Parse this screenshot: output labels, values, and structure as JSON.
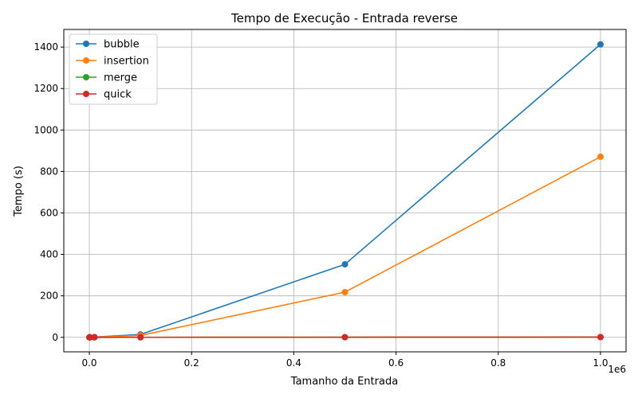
{
  "chart_data": {
    "type": "line",
    "title": "Tempo de Execução - Entrada reverse",
    "xlabel": "Tamanho da Entrada",
    "ylabel": "Tempo (s)",
    "x_offset_label": "1e6",
    "x": [
      100,
      1000,
      10000,
      100000,
      500000,
      1000000
    ],
    "xlim": [
      -50000,
      1050000
    ],
    "ylim": [
      -70,
      1485
    ],
    "xticks": [
      0,
      200000,
      400000,
      600000,
      800000,
      1000000
    ],
    "xtick_labels": [
      "0.0",
      "0.2",
      "0.4",
      "0.6",
      "0.8",
      "1.0"
    ],
    "yticks": [
      0,
      200,
      400,
      600,
      800,
      1000,
      1200,
      1400
    ],
    "ytick_labels": [
      "0",
      "200",
      "400",
      "600",
      "800",
      "1000",
      "1200",
      "1400"
    ],
    "grid": true,
    "legend_position": "top-left",
    "series": [
      {
        "name": "bubble",
        "color": "#1f77b4",
        "values": [
          0.001,
          0.1,
          1.4,
          14,
          352,
          1413
        ]
      },
      {
        "name": "insertion",
        "color": "#ff7f0e",
        "values": [
          0.0005,
          0.05,
          0.9,
          9,
          218,
          871
        ]
      },
      {
        "name": "merge",
        "color": "#2ca02c",
        "values": [
          0.0001,
          0.001,
          0.01,
          0.1,
          0.6,
          1.2
        ]
      },
      {
        "name": "quick",
        "color": "#d62728",
        "values": [
          0.0001,
          0.001,
          0.01,
          0.08,
          0.5,
          1.0
        ]
      }
    ]
  }
}
